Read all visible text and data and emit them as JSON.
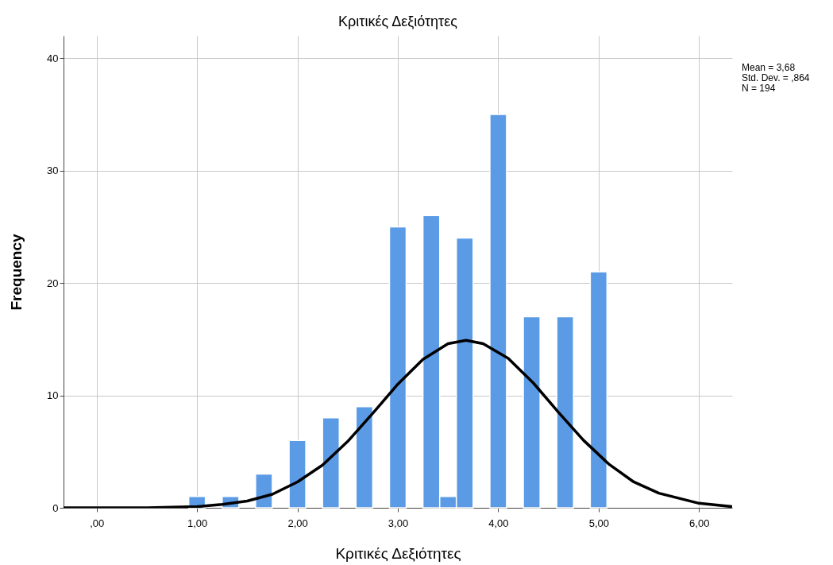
{
  "chart_data": {
    "type": "histogram",
    "title": "Κριτικές Δεξιότητες",
    "xlabel": "Κριτικές Δεξιότητες",
    "ylabel": "Frequency",
    "annotations": [
      "Mean = 3,68",
      "Std. Dev. = ,864",
      "N = 194"
    ],
    "bins": [
      0.917,
      1.083,
      1.25,
      1.417,
      1.583,
      1.75,
      1.917,
      2.083,
      2.25,
      2.417,
      2.583,
      2.75,
      2.917,
      3.083,
      3.25,
      3.417,
      3.583,
      3.75,
      3.917,
      4.083,
      4.25,
      4.417,
      4.583,
      4.75,
      4.917,
      5.083
    ],
    "values": [
      1,
      0,
      1,
      0,
      3,
      0,
      6,
      0,
      8,
      0,
      9,
      0,
      25,
      0,
      26,
      1,
      24,
      0,
      35,
      0,
      17,
      0,
      17,
      0,
      21
    ],
    "color": "#5b9be6",
    "series": [
      {
        "type": "line",
        "color": "#000000",
        "x": [
          -0.33,
          0,
          0.5,
          1.0,
          1.25,
          1.5,
          1.75,
          2.0,
          2.25,
          2.5,
          2.75,
          3.0,
          3.25,
          3.5,
          3.68,
          3.85,
          4.1,
          4.35,
          4.6,
          4.85,
          5.1,
          5.35,
          5.6,
          6.0,
          6.33
        ],
        "values": [
          0,
          0,
          0,
          0.1,
          0.3,
          0.6,
          1.2,
          2.3,
          3.8,
          5.9,
          8.4,
          11.0,
          13.2,
          14.6,
          14.9,
          14.6,
          13.3,
          11.1,
          8.5,
          6.0,
          3.9,
          2.3,
          1.3,
          0.4,
          0.1
        ]
      }
    ],
    "xlim": [
      -0.33,
      6.33
    ],
    "ylim": [
      0,
      42
    ],
    "xticks": [
      {
        "value": 0,
        "label": ",00"
      },
      {
        "value": 1,
        "label": "1,00"
      },
      {
        "value": 2,
        "label": "2,00"
      },
      {
        "value": 3,
        "label": "3,00"
      },
      {
        "value": 4,
        "label": "4,00"
      },
      {
        "value": 5,
        "label": "5,00"
      },
      {
        "value": 6,
        "label": "6,00"
      }
    ],
    "yticks": [
      0,
      10,
      20,
      30,
      40
    ],
    "grid": true
  }
}
